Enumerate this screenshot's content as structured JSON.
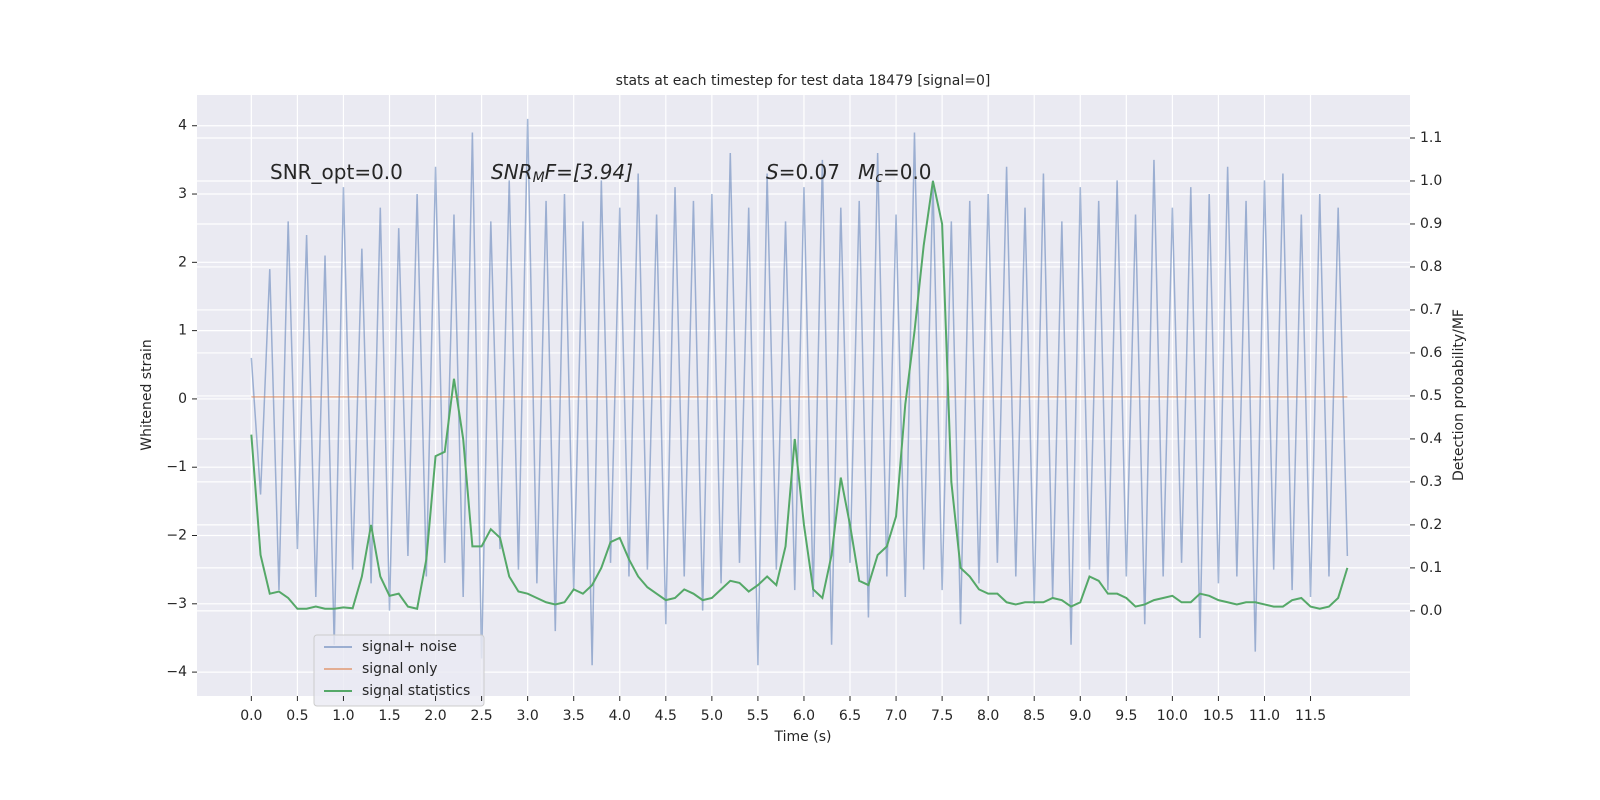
{
  "chart_data": {
    "type": "line",
    "title": "stats at each timestep for test data 18479 [signal=0]",
    "xlabel": "Time (s)",
    "ylabel": "Whitened strain",
    "y2label": "Detection probability/MF",
    "annotations": [
      [
        "SNR_opt=0.0"
      ],
      [
        "SNR",
        "M",
        "F=[3.94]"
      ],
      [
        "S",
        "=0.07"
      ],
      [
        "M",
        "c",
        "=0.0"
      ]
    ],
    "x": [
      0,
      0.1,
      0.2,
      0.3,
      0.4,
      0.5,
      0.6,
      0.7,
      0.8,
      0.9,
      1,
      1.1,
      1.2,
      1.3,
      1.4,
      1.5,
      1.6,
      1.7,
      1.8,
      1.9,
      2,
      2.1,
      2.2,
      2.3,
      2.4,
      2.5,
      2.6,
      2.7,
      2.8,
      2.9,
      3,
      3.1,
      3.2,
      3.3,
      3.4,
      3.5,
      3.6,
      3.7,
      3.8,
      3.9,
      4,
      4.1,
      4.2,
      4.3,
      4.4,
      4.5,
      4.6,
      4.7,
      4.8,
      4.9,
      5,
      5.1,
      5.2,
      5.3,
      5.4,
      5.5,
      5.6,
      5.7,
      5.8,
      5.9,
      6,
      6.1,
      6.2,
      6.3,
      6.4,
      6.5,
      6.6,
      6.7,
      6.8,
      6.9,
      7,
      7.1,
      7.2,
      7.3,
      7.4,
      7.5,
      7.6,
      7.7,
      7.8,
      7.9,
      8,
      8.1,
      8.2,
      8.3,
      8.4,
      8.5,
      8.6,
      8.7,
      8.8,
      8.9,
      9,
      9.1,
      9.2,
      9.3,
      9.4,
      9.5,
      9.6,
      9.7,
      9.8,
      9.9,
      10,
      10.1,
      10.2,
      10.3,
      10.4,
      10.5,
      10.6,
      10.7,
      10.8,
      10.9,
      11,
      11.1,
      11.2,
      11.3,
      11.4,
      11.5,
      11.6,
      11.7,
      11.8,
      11.9
    ],
    "series": [
      {
        "name": "signal+ noise",
        "color": "#4c72b0",
        "opacity": 0.5,
        "values": [
          0.6,
          -1.4,
          1.9,
          -2.8,
          2.6,
          -2.2,
          2.4,
          -2.9,
          2.1,
          -3.6,
          3.1,
          -2.5,
          2.2,
          -2.7,
          2.8,
          -3.1,
          2.5,
          -2.3,
          3.0,
          -2.6,
          3.4,
          -2.4,
          2.7,
          -2.9,
          3.9,
          -3.8,
          2.6,
          -2.2,
          3.2,
          -2.5,
          4.1,
          -2.7,
          2.9,
          -3.4,
          3.0,
          -2.8,
          2.6,
          -3.9,
          3.2,
          -2.4,
          2.8,
          -2.6,
          3.3,
          -2.5,
          2.7,
          -3.3,
          3.1,
          -2.6,
          2.9,
          -3.1,
          3.0,
          -2.7,
          3.6,
          -2.4,
          2.8,
          -3.9,
          3.3,
          -2.5,
          2.6,
          -2.8,
          3.1,
          -2.9,
          3.5,
          -3.6,
          2.8,
          -2.4,
          2.9,
          -3.2,
          3.6,
          -2.6,
          2.7,
          -2.9,
          3.9,
          -2.5,
          3.2,
          -2.8,
          2.6,
          -3.3,
          2.9,
          -2.7,
          3.0,
          -2.4,
          3.4,
          -2.6,
          2.8,
          -3.0,
          3.3,
          -2.9,
          2.6,
          -3.6,
          3.1,
          -2.5,
          2.9,
          -2.8,
          3.2,
          -2.6,
          2.7,
          -3.3,
          3.5,
          -2.6,
          2.8,
          -2.4,
          3.1,
          -3.5,
          3.0,
          -2.7,
          3.4,
          -2.6,
          2.9,
          -3.7,
          3.2,
          -2.5,
          3.3,
          -2.8,
          2.7,
          -2.9,
          3.0,
          -2.6,
          2.8,
          -2.3
        ]
      },
      {
        "name": "signal only",
        "color": "#dd8452",
        "opacity": 0.6,
        "values": [
          0.03,
          0.03,
          0.03,
          0.03,
          0.03,
          0.03,
          0.03,
          0.03,
          0.03,
          0.03,
          0.03,
          0.03,
          0.03,
          0.03,
          0.03,
          0.03,
          0.03,
          0.03,
          0.03,
          0.03,
          0.03,
          0.03,
          0.03,
          0.03,
          0.03,
          0.03,
          0.03,
          0.03,
          0.03,
          0.03,
          0.03,
          0.03,
          0.03,
          0.03,
          0.03,
          0.03,
          0.03,
          0.03,
          0.03,
          0.03,
          0.03,
          0.03,
          0.03,
          0.03,
          0.03,
          0.03,
          0.03,
          0.03,
          0.03,
          0.03,
          0.03,
          0.03,
          0.03,
          0.03,
          0.03,
          0.03,
          0.03,
          0.03,
          0.03,
          0.03,
          0.03,
          0.03,
          0.03,
          0.03,
          0.03,
          0.03,
          0.03,
          0.03,
          0.03,
          0.03,
          0.03,
          0.03,
          0.03,
          0.03,
          0.03,
          0.03,
          0.03,
          0.03,
          0.03,
          0.03,
          0.03,
          0.03,
          0.03,
          0.03,
          0.03,
          0.03,
          0.03,
          0.03,
          0.03,
          0.03,
          0.03,
          0.03,
          0.03,
          0.03,
          0.03,
          0.03,
          0.03,
          0.03,
          0.03,
          0.03,
          0.03,
          0.03,
          0.03,
          0.03,
          0.03,
          0.03,
          0.03,
          0.03,
          0.03,
          0.03,
          0.03,
          0.03,
          0.03,
          0.03,
          0.03,
          0.03,
          0.03,
          0.03,
          0.03,
          0.03
        ]
      },
      {
        "name": "signal statistics",
        "color": "#55a868",
        "opacity": 1,
        "axis": "y2",
        "values": [
          0.41,
          0.13,
          0.04,
          0.045,
          0.03,
          0.005,
          0.005,
          0.01,
          0.005,
          0.005,
          0.008,
          0.006,
          0.08,
          0.2,
          0.08,
          0.035,
          0.04,
          0.01,
          0.005,
          0.12,
          0.36,
          0.37,
          0.54,
          0.4,
          0.15,
          0.15,
          0.19,
          0.17,
          0.08,
          0.045,
          0.04,
          0.03,
          0.02,
          0.015,
          0.02,
          0.05,
          0.04,
          0.06,
          0.1,
          0.16,
          0.17,
          0.12,
          0.08,
          0.055,
          0.04,
          0.025,
          0.03,
          0.05,
          0.04,
          0.025,
          0.03,
          0.05,
          0.07,
          0.065,
          0.045,
          0.06,
          0.08,
          0.06,
          0.15,
          0.4,
          0.2,
          0.05,
          0.03,
          0.13,
          0.31,
          0.2,
          0.07,
          0.06,
          0.13,
          0.15,
          0.22,
          0.48,
          0.65,
          0.85,
          1.0,
          0.9,
          0.3,
          0.1,
          0.08,
          0.05,
          0.04,
          0.04,
          0.02,
          0.015,
          0.02,
          0.02,
          0.02,
          0.03,
          0.025,
          0.01,
          0.02,
          0.08,
          0.07,
          0.04,
          0.04,
          0.03,
          0.01,
          0.015,
          0.025,
          0.03,
          0.035,
          0.02,
          0.02,
          0.04,
          0.035,
          0.025,
          0.02,
          0.015,
          0.02,
          0.02,
          0.015,
          0.01,
          0.01,
          0.025,
          0.03,
          0.01,
          0.005,
          0.01,
          0.03,
          0.1
        ]
      }
    ],
    "xlim": [
      -0.59,
      12.58
    ],
    "ylim": [
      -4.35,
      4.45
    ],
    "y2lim": [
      -0.198,
      1.2
    ],
    "xticks": [
      {
        "value": 0,
        "label": "0.0"
      },
      0.5,
      {
        "value": 1,
        "label": "1.0"
      },
      1.5,
      {
        "value": 2,
        "label": "2.0"
      },
      2.5,
      {
        "value": 3,
        "label": "3.0"
      },
      3.5,
      {
        "value": 4,
        "label": "4.0"
      },
      4.5,
      {
        "value": 5,
        "label": "5.0"
      },
      5.5,
      {
        "value": 6,
        "label": "6.0"
      },
      6.5,
      {
        "value": 7,
        "label": "7.0"
      },
      7.5,
      {
        "value": 8,
        "label": "8.0"
      },
      8.5,
      {
        "value": 9,
        "label": "9.0"
      },
      9.5,
      {
        "value": 10,
        "label": "10.0"
      },
      10.5,
      {
        "value": 11,
        "label": "11.0"
      },
      11.5
    ],
    "yticks": [
      {
        "value": -4,
        "label": "−4"
      },
      {
        "value": -3,
        "label": "−3"
      },
      {
        "value": -2,
        "label": "−2"
      },
      {
        "value": -1,
        "label": "−1"
      },
      0,
      1,
      2,
      3,
      4
    ],
    "y2ticks": [
      {
        "value": 0,
        "label": "0.0"
      },
      0.1,
      0.2,
      0.3,
      0.4,
      0.5,
      0.6,
      0.7,
      0.8,
      0.9,
      {
        "value": 1,
        "label": "1.0"
      },
      1.1
    ],
    "grid": true,
    "legend": "lower left"
  }
}
